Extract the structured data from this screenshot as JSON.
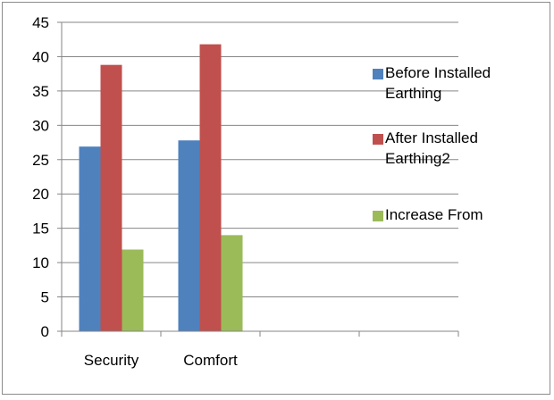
{
  "chart_data": {
    "type": "bar",
    "title": "",
    "xlabel": "",
    "ylabel": "",
    "categories": [
      "Security",
      "Comfort",
      "",
      ""
    ],
    "series": [
      {
        "name": "Before Installed Earthing",
        "color": "#4f81bd",
        "values": [
          26.9,
          27.8,
          null,
          null
        ]
      },
      {
        "name": "After Installed Earthing2",
        "color": "#c0504d",
        "values": [
          38.8,
          41.8,
          null,
          null
        ]
      },
      {
        "name": "Increase From",
        "color": "#9bbb59",
        "values": [
          11.9,
          14,
          null,
          null
        ]
      }
    ],
    "ylim": [
      0,
      45
    ],
    "yticks": [
      0,
      5,
      10,
      15,
      20,
      25,
      30,
      35,
      40,
      45
    ],
    "grid": true,
    "legend_position": "right",
    "legend_lines": [
      [
        "Before Installed",
        "Earthing"
      ],
      [
        "After Installed",
        "Earthing2"
      ],
      [
        "Increase From"
      ]
    ]
  }
}
